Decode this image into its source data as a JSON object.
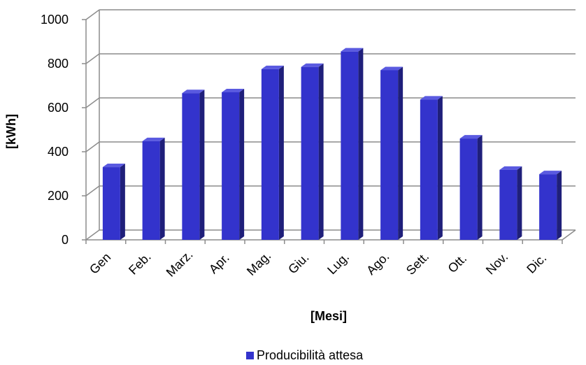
{
  "chart_data": {
    "type": "bar",
    "title": "",
    "xlabel": "[Mesi]",
    "ylabel": "[kWh]",
    "categories": [
      "Gen",
      "Feb.",
      "Marz.",
      "Apr.",
      "Mag.",
      "Giu.",
      "Lug.",
      "Ago.",
      "Sett.",
      "Ott.",
      "Nov.",
      "Dic."
    ],
    "series": [
      {
        "name": "Producibilità attesa",
        "values": [
          330,
          448,
          666,
          670,
          775,
          785,
          855,
          770,
          637,
          460,
          318,
          298
        ]
      }
    ],
    "ylim": [
      0,
      1000
    ],
    "yticks": [
      0,
      200,
      400,
      600,
      800,
      1000
    ],
    "grid": true,
    "three_d": true,
    "legend_position": "bottom",
    "colors": {
      "bar_front": "#3333CC",
      "bar_side": "#1F1F7A",
      "bar_top": "#5A5AE0",
      "grid": "#8C8C8C",
      "text": "#000000"
    }
  }
}
